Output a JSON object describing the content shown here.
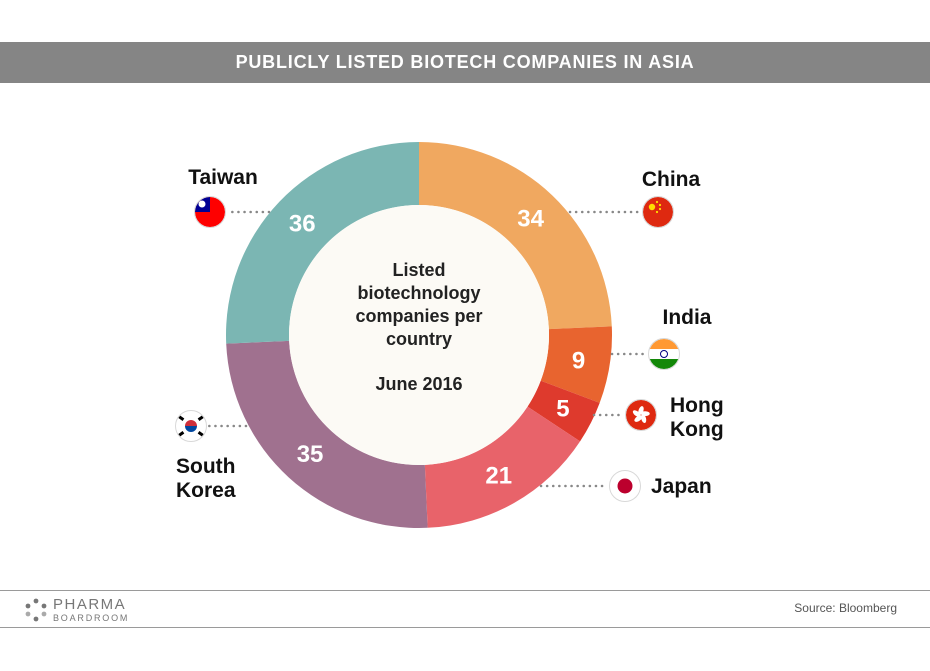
{
  "title": "PUBLICLY LISTED BIOTECH COMPANIES IN ASIA",
  "chart_data": {
    "type": "pie",
    "donut": true,
    "categories": [
      "China",
      "India",
      "Hong Kong",
      "Japan",
      "South Korea",
      "Taiwan"
    ],
    "values": [
      34,
      9,
      5,
      21,
      35,
      36
    ],
    "colors": [
      "#F0A860",
      "#E8642F",
      "#DE3A2D",
      "#E8636A",
      "#A0718F",
      "#7BB6B3"
    ],
    "center_text": [
      "Listed",
      "biotechnology",
      "companies per",
      "country"
    ],
    "center_date": "June 2016",
    "legend_labels": {
      "China": [
        "China"
      ],
      "India": [
        "India"
      ],
      "Hong Kong": [
        "Hong",
        "Kong"
      ],
      "Japan": [
        "Japan"
      ],
      "South Korea": [
        "South",
        "Korea"
      ],
      "Taiwan": [
        "Taiwan"
      ]
    },
    "flag_icons": {
      "China": "china-flag-icon",
      "India": "india-flag-icon",
      "Hong Kong": "hong-kong-flag-icon",
      "Japan": "japan-flag-icon",
      "South Korea": "south-korea-flag-icon",
      "Taiwan": "taiwan-flag-icon"
    }
  },
  "footer": {
    "logo_top": "PHARMA",
    "logo_bottom": "BOARDROOM",
    "source": "Source:  Bloomberg"
  }
}
